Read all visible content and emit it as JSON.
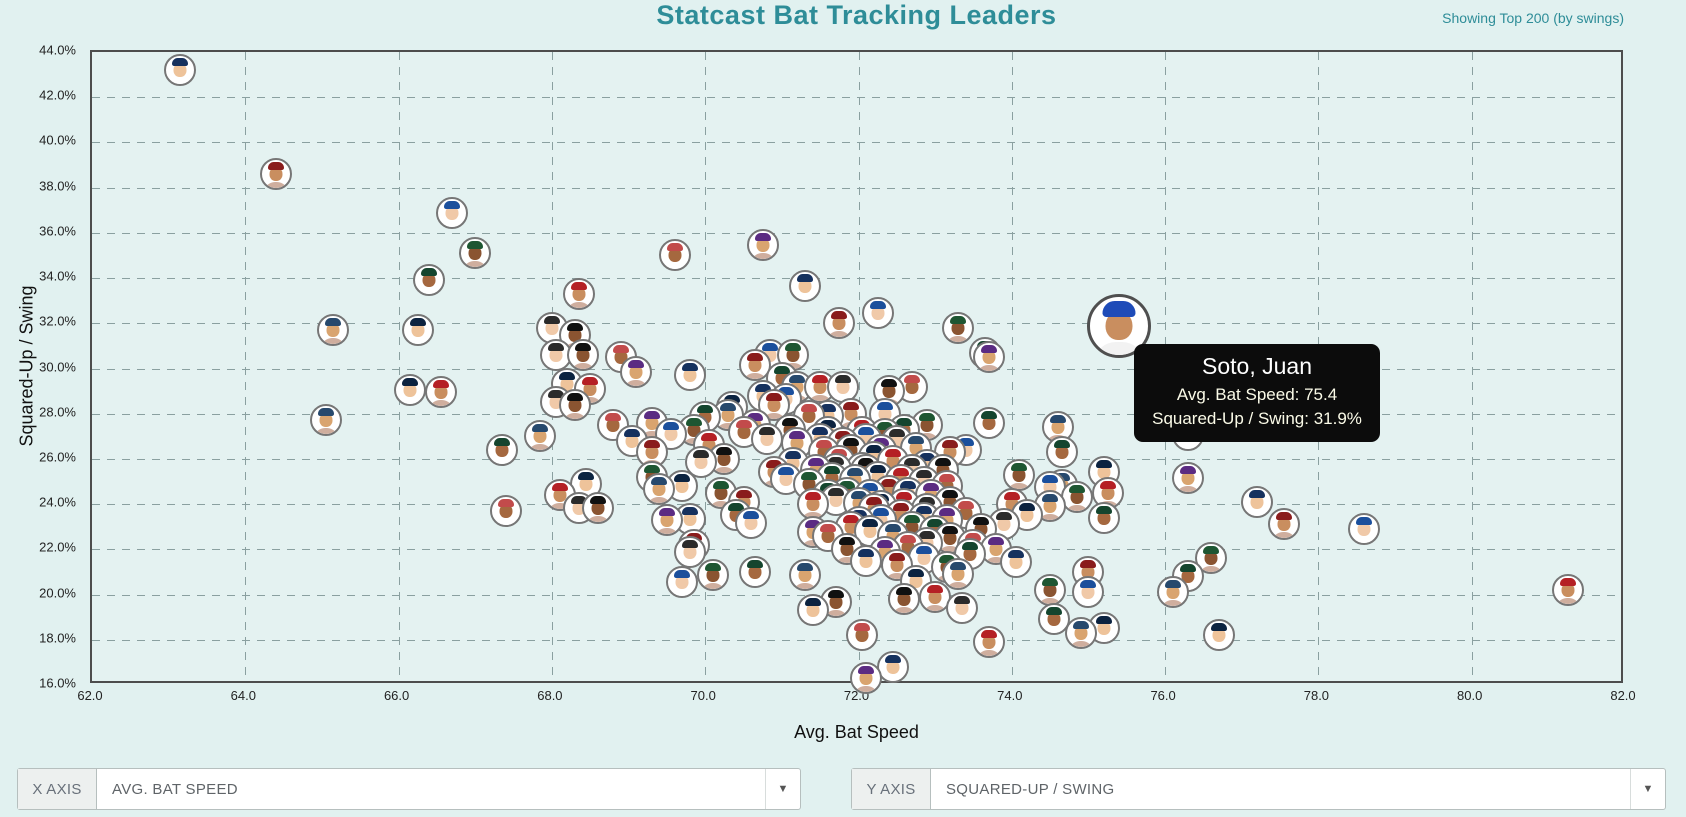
{
  "header": {
    "title": "Statcast Bat Tracking Leaders",
    "subtitle": "Showing Top 200 (by swings)"
  },
  "tooltip": {
    "name": "Soto, Juan",
    "line1": "Avg. Bat Speed: 75.4",
    "line2": "Squared-Up / Swing: 31.9%"
  },
  "controls": {
    "x": {
      "addon": "X AXIS",
      "value": "AVG. BAT SPEED",
      "arrow": "▼"
    },
    "y": {
      "addon": "Y AXIS",
      "value": "SQUARED-UP / SWING",
      "arrow": "▼"
    }
  },
  "colors": {
    "accent_teal": "#2e8d98",
    "background": "#e1f1f0",
    "plot_border": "#4d4d4d",
    "grid": "#8aa0a0",
    "tooltip_bg": "#0c0c0c",
    "avatar_border": "#767676",
    "cap_palette": [
      "#16315e",
      "#b52025",
      "#1b4f9c",
      "#111111",
      "#14452e",
      "#5b2b82",
      "#0c2340",
      "#8a1c1c",
      "#2b2b2b",
      "#1e5632",
      "#c24b4b",
      "#27496d"
    ],
    "skin_palette": [
      "#eec39a",
      "#d9a46f",
      "#a5683f",
      "#8a5431",
      "#f0c9a8",
      "#c98e5f"
    ],
    "jersey_palette": [
      "#ffffff",
      "#d9dde0",
      "#9fb6c9",
      "#cfae9e",
      "#b8c2b4",
      "#e8e3d6"
    ]
  },
  "chart_data": {
    "type": "scatter",
    "title": "Statcast Bat Tracking Leaders",
    "xlabel": "Avg. Bat Speed",
    "ylabel": "Squared-Up / Swing",
    "xlim": [
      62.0,
      82.0
    ],
    "ylim": [
      16.0,
      44.0
    ],
    "grid": "dashed",
    "marker": "player-headshot-circle",
    "x_tick_values": [
      62,
      64,
      66,
      68,
      70,
      72,
      74,
      76,
      78,
      80,
      82
    ],
    "x_tick_labels": [
      "62.0",
      "64.0",
      "66.0",
      "68.0",
      "70.0",
      "72.0",
      "74.0",
      "76.0",
      "78.0",
      "80.0",
      "82.0"
    ],
    "y_tick_values": [
      44,
      42,
      40,
      38,
      36,
      34,
      32,
      30,
      28,
      26,
      24,
      22,
      20,
      18,
      16
    ],
    "y_tick_labels": [
      "44.0%",
      "42.0%",
      "40.0%",
      "38.0%",
      "36.0%",
      "34.0%",
      "32.0%",
      "30.0%",
      "28.0%",
      "26.0%",
      "24.0%",
      "22.0%",
      "20.0%",
      "18.0%",
      "16.0%"
    ],
    "highlight_point": {
      "name": "Soto, Juan",
      "x": 75.4,
      "y": 31.9
    },
    "points": [
      [
        63.15,
        43.2
      ],
      [
        64.4,
        38.6
      ],
      [
        66.7,
        36.9
      ],
      [
        67.0,
        35.1
      ],
      [
        66.4,
        33.9
      ],
      [
        65.15,
        31.7
      ],
      [
        66.25,
        31.7
      ],
      [
        68.35,
        33.3
      ],
      [
        68.0,
        31.8
      ],
      [
        68.3,
        31.5
      ],
      [
        69.6,
        35.0
      ],
      [
        70.75,
        35.45
      ],
      [
        71.3,
        33.65
      ],
      [
        71.75,
        32.0
      ],
      [
        72.25,
        32.45
      ],
      [
        73.3,
        31.8
      ],
      [
        73.65,
        30.7
      ],
      [
        65.05,
        27.7
      ],
      [
        66.15,
        29.05
      ],
      [
        66.55,
        28.95
      ],
      [
        68.05,
        30.6
      ],
      [
        68.4,
        30.6
      ],
      [
        68.9,
        30.5
      ],
      [
        69.1,
        29.85
      ],
      [
        69.8,
        29.7
      ],
      [
        70.65,
        30.15
      ],
      [
        70.85,
        30.6
      ],
      [
        71.15,
        30.6
      ],
      [
        71.0,
        29.6
      ],
      [
        71.2,
        29.2
      ],
      [
        68.2,
        29.3
      ],
      [
        68.5,
        29.1
      ],
      [
        68.05,
        28.5
      ],
      [
        68.3,
        28.4
      ],
      [
        68.8,
        27.5
      ],
      [
        69.3,
        27.6
      ],
      [
        69.05,
        26.8
      ],
      [
        69.3,
        26.3
      ],
      [
        69.55,
        27.1
      ],
      [
        69.85,
        27.3
      ],
      [
        70.0,
        27.85
      ],
      [
        70.3,
        27.95
      ],
      [
        70.35,
        28.3
      ],
      [
        70.05,
        26.6
      ],
      [
        69.95,
        25.85
      ],
      [
        70.25,
        26.0
      ],
      [
        70.5,
        27.2
      ],
      [
        70.65,
        27.5
      ],
      [
        70.75,
        28.8
      ],
      [
        70.9,
        28.4
      ],
      [
        71.05,
        28.65
      ],
      [
        69.3,
        25.2
      ],
      [
        67.35,
        26.4
      ],
      [
        67.85,
        27.0
      ],
      [
        68.45,
        24.9
      ],
      [
        68.1,
        24.4
      ],
      [
        68.35,
        23.85
      ],
      [
        68.6,
        23.85
      ],
      [
        67.4,
        23.7
      ],
      [
        69.5,
        23.3
      ],
      [
        69.8,
        23.35
      ],
      [
        69.85,
        22.2
      ],
      [
        69.7,
        20.55
      ],
      [
        70.1,
        20.85
      ],
      [
        70.65,
        21.0
      ],
      [
        71.3,
        20.85
      ],
      [
        71.4,
        19.3
      ],
      [
        71.5,
        29.2
      ],
      [
        71.8,
        29.2
      ],
      [
        72.4,
        29.0
      ],
      [
        72.7,
        29.2
      ],
      [
        73.7,
        30.5
      ],
      [
        71.6,
        27.9
      ],
      [
        71.9,
        28.0
      ],
      [
        72.35,
        28.0
      ],
      [
        72.9,
        27.5
      ],
      [
        73.7,
        27.6
      ],
      [
        74.6,
        27.4
      ],
      [
        71.6,
        27.2
      ],
      [
        72.05,
        27.2
      ],
      [
        72.5,
        26.8
      ],
      [
        71.9,
        26.4
      ],
      [
        71.55,
        26.3
      ],
      [
        72.3,
        26.4
      ],
      [
        72.9,
        25.75
      ],
      [
        73.2,
        26.3
      ],
      [
        73.4,
        26.4
      ],
      [
        74.1,
        25.3
      ],
      [
        74.65,
        26.3
      ],
      [
        74.65,
        24.85
      ],
      [
        75.2,
        25.4
      ],
      [
        75.25,
        24.5
      ],
      [
        71.7,
        25.55
      ],
      [
        72.1,
        25.5
      ],
      [
        76.3,
        27.05
      ],
      [
        76.3,
        25.15
      ],
      [
        77.2,
        24.1
      ],
      [
        77.55,
        23.1
      ],
      [
        78.6,
        22.9
      ],
      [
        76.6,
        21.6
      ],
      [
        76.3,
        20.8
      ],
      [
        76.1,
        20.1
      ],
      [
        76.7,
        18.2
      ],
      [
        81.25,
        20.2
      ],
      [
        69.8,
        21.9
      ],
      [
        71.7,
        19.65
      ],
      [
        72.05,
        18.2
      ],
      [
        72.1,
        16.3
      ],
      [
        72.45,
        16.8
      ],
      [
        70.5,
        24.1
      ],
      [
        70.6,
        23.15
      ],
      [
        70.2,
        24.5
      ],
      [
        70.4,
        23.5
      ],
      [
        69.4,
        24.65
      ],
      [
        69.7,
        24.8
      ],
      [
        71.4,
        24.0
      ],
      [
        71.7,
        24.2
      ],
      [
        71.85,
        22.0
      ],
      [
        71.6,
        22.6
      ],
      [
        71.4,
        22.75
      ],
      [
        72.0,
        23.2
      ],
      [
        72.2,
        23.8
      ],
      [
        74.5,
        24.75
      ],
      [
        74.85,
        24.3
      ],
      [
        75.2,
        23.4
      ],
      [
        74.5,
        23.9
      ],
      [
        74.2,
        23.5
      ],
      [
        74.0,
        24.0
      ],
      [
        73.9,
        23.1
      ],
      [
        73.6,
        22.9
      ],
      [
        73.5,
        22.2
      ],
      [
        73.8,
        22.0
      ],
      [
        74.05,
        21.45
      ],
      [
        75.0,
        21.0
      ],
      [
        75.0,
        20.1
      ],
      [
        74.5,
        20.2
      ],
      [
        74.55,
        18.9
      ],
      [
        74.9,
        18.3
      ],
      [
        75.2,
        18.5
      ],
      [
        73.7,
        17.9
      ],
      [
        70.8,
        26.9
      ],
      [
        71.1,
        27.3
      ],
      [
        71.35,
        27.9
      ],
      [
        71.2,
        26.7
      ],
      [
        71.5,
        26.9
      ],
      [
        71.8,
        26.7
      ],
      [
        72.1,
        26.9
      ],
      [
        72.35,
        27.1
      ],
      [
        72.6,
        27.3
      ],
      [
        72.75,
        26.5
      ],
      [
        72.2,
        26.1
      ],
      [
        72.45,
        25.9
      ],
      [
        72.7,
        25.5
      ],
      [
        72.05,
        25.6
      ],
      [
        71.75,
        25.9
      ],
      [
        71.45,
        25.5
      ],
      [
        71.15,
        25.8
      ],
      [
        70.9,
        25.4
      ],
      [
        71.05,
        25.1
      ],
      [
        71.35,
        24.9
      ],
      [
        71.65,
        25.15
      ],
      [
        71.95,
        25.05
      ],
      [
        72.25,
        25.2
      ],
      [
        72.55,
        25.05
      ],
      [
        72.85,
        25.0
      ],
      [
        73.1,
        25.5
      ],
      [
        73.15,
        24.8
      ],
      [
        72.95,
        24.4
      ],
      [
        72.65,
        24.5
      ],
      [
        72.4,
        24.6
      ],
      [
        72.15,
        24.4
      ],
      [
        71.85,
        24.5
      ],
      [
        71.6,
        24.4
      ],
      [
        72.0,
        24.05
      ],
      [
        72.3,
        23.9
      ],
      [
        72.6,
        24.0
      ],
      [
        72.9,
        23.8
      ],
      [
        73.2,
        24.1
      ],
      [
        73.4,
        23.6
      ],
      [
        73.15,
        23.3
      ],
      [
        72.85,
        23.4
      ],
      [
        72.55,
        23.5
      ],
      [
        72.3,
        23.3
      ],
      [
        72.7,
        23.0
      ],
      [
        73.0,
        22.8
      ],
      [
        72.45,
        22.6
      ],
      [
        72.15,
        22.8
      ],
      [
        71.9,
        23.0
      ],
      [
        72.9,
        22.3
      ],
      [
        73.2,
        22.5
      ],
      [
        72.65,
        22.1
      ],
      [
        72.35,
        21.9
      ],
      [
        72.1,
        21.5
      ],
      [
        72.5,
        21.3
      ],
      [
        72.85,
        21.6
      ],
      [
        73.15,
        21.2
      ],
      [
        73.45,
        21.8
      ],
      [
        73.3,
        20.9
      ],
      [
        72.75,
        20.6
      ],
      [
        73.0,
        19.9
      ],
      [
        73.35,
        19.4
      ],
      [
        72.6,
        19.8
      ]
    ]
  }
}
